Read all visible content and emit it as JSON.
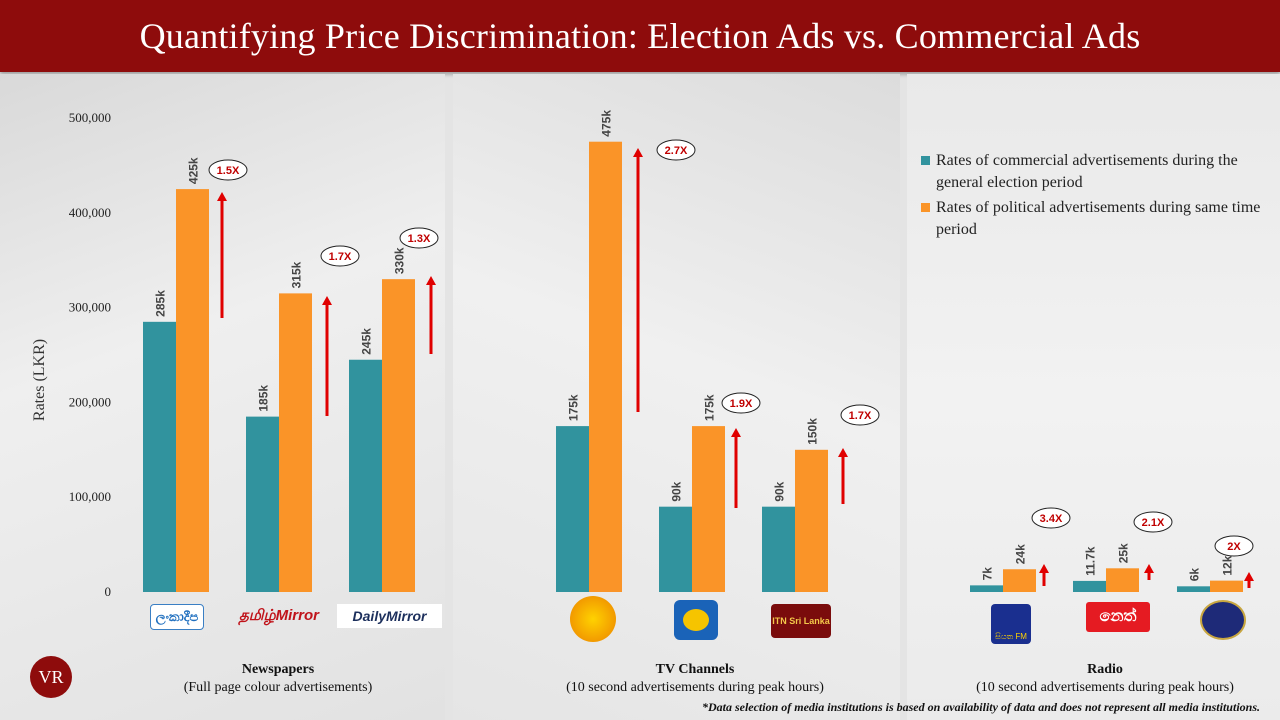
{
  "title": "Quantifying Price Discrimination: Election Ads vs. Commercial Ads",
  "colors": {
    "commercial": "#31939e",
    "political": "#fa9428",
    "arrow": "#e00000",
    "banner": "#8e0c0c"
  },
  "legend": {
    "commercial": "Rates of commercial advertisements during the general election period",
    "political": "Rates of political advertisements during same time period"
  },
  "sections": [
    {
      "title": "Newspapers",
      "subtitle": "(Full page colour advertisements)"
    },
    {
      "title": "TV Channels",
      "subtitle": "(10 second advertisements during peak hours)"
    },
    {
      "title": "Radio",
      "subtitle": "(10 second advertisements during peak hours)"
    }
  ],
  "logos": {
    "lankadeepa": "ලංකාදීප",
    "tamilmirror": "தமிழ்Mirror",
    "dailymirror": "DailyMirror",
    "itn": "ITN Sri Lanka",
    "neth": "නෙත්",
    "siyatha": "සියත FM",
    "vr": "VR"
  },
  "footnote": "*Data selection of media institutions is based on availability of data and does not represent all media institutions.",
  "chart_data": {
    "type": "bar",
    "ylabel": "Rates (LKR)",
    "ylim": [
      0,
      500000
    ],
    "yticks": [
      "0",
      "100,000",
      "200,000",
      "300,000",
      "400,000",
      "500,000"
    ],
    "series": [
      {
        "name": "Rates of commercial advertisements during the general election period",
        "values": [
          285000,
          185000,
          245000,
          175000,
          90000,
          90000,
          7000,
          11700,
          6000
        ]
      },
      {
        "name": "Rates of political advertisements during same time period",
        "values": [
          425000,
          315000,
          330000,
          475000,
          175000,
          150000,
          24000,
          25000,
          12000
        ]
      }
    ],
    "value_labels": {
      "commercial": [
        "285k",
        "185k",
        "245k",
        "175k",
        "90k",
        "90k",
        "7k",
        "11.7k",
        "6k"
      ],
      "political": [
        "425k",
        "315k",
        "330k",
        "475k",
        "175k",
        "150k",
        "24k",
        "25k",
        "12k"
      ]
    },
    "multipliers": [
      "1.5X",
      "1.7X",
      "1.3X",
      "2.7X",
      "1.9X",
      "1.7X",
      "3.4X",
      "2.1X",
      "2X"
    ]
  }
}
